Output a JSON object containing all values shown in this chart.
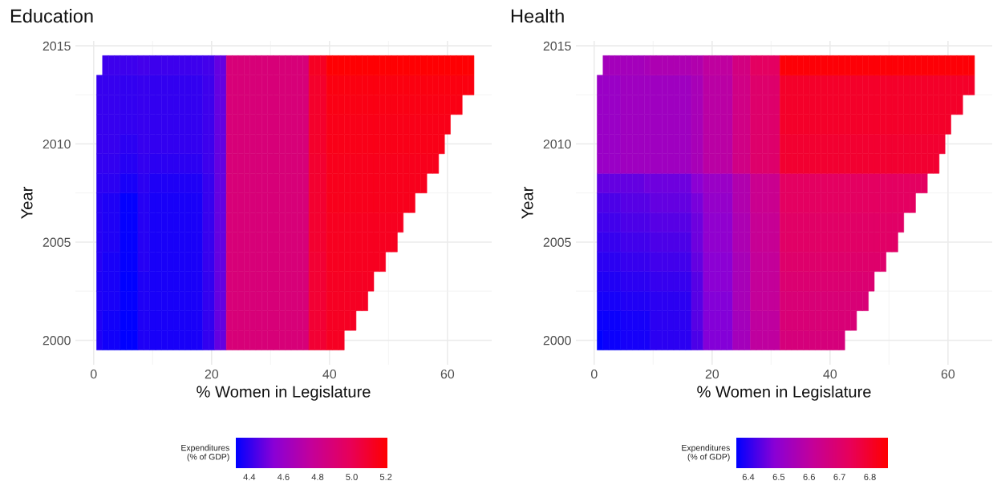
{
  "chart_data": [
    {
      "type": "heatmap",
      "title": "Education",
      "xlabel": "% Women in Legislature",
      "ylabel": "Year",
      "clabel": "Expenditures\n(% of GDP)",
      "categories": [
        "0",
        null,
        null,
        null,
        null,
        null,
        null,
        null,
        null,
        null,
        null,
        null,
        null,
        null,
        null,
        null,
        null,
        null,
        null,
        null,
        "20",
        null,
        null,
        null,
        null,
        null,
        null,
        null,
        null,
        null,
        null,
        null,
        null,
        null,
        null,
        null,
        null,
        null,
        null,
        null,
        "40",
        null,
        null,
        null,
        null,
        null,
        null,
        null,
        null,
        null,
        null,
        null,
        null,
        null,
        null,
        null,
        null,
        null,
        null,
        null,
        "60",
        null,
        null,
        null,
        null
      ],
      "y_categories": [
        "2015",
        null,
        null,
        null,
        null,
        "2010",
        null,
        null,
        null,
        null,
        "2005",
        null,
        null,
        null,
        null,
        "2000"
      ],
      "cells": [
        [
          null,
          null,
          null,
          null,
          null,
          null,
          null,
          null,
          null,
          null,
          null,
          null,
          null,
          null,
          null,
          null,
          null,
          null,
          null,
          null,
          null,
          null,
          null,
          null,
          null,
          null,
          null,
          null,
          null,
          null,
          null,
          null,
          null,
          null,
          null,
          null,
          null,
          null,
          null,
          null,
          null,
          null,
          null,
          null,
          null,
          null,
          null,
          null,
          null,
          null,
          null,
          null,
          null,
          null,
          null,
          null,
          null,
          null,
          null,
          null,
          null,
          null,
          null,
          null,
          null
        ],
        [
          null,
          null,
          4.42,
          4.42,
          4.42,
          4.42,
          4.42,
          4.42,
          4.43,
          4.43,
          4.42,
          4.42,
          4.42,
          4.42,
          4.42,
          4.42,
          4.42,
          4.42,
          4.42,
          4.43,
          4.43,
          4.48,
          4.48,
          4.88,
          4.88,
          4.88,
          4.88,
          4.88,
          4.88,
          4.88,
          4.88,
          4.88,
          4.88,
          4.88,
          4.88,
          4.88,
          4.88,
          5.12,
          5.12,
          5.12,
          5.2,
          5.2,
          5.2,
          5.2,
          5.2,
          5.2,
          5.2,
          5.2,
          5.2,
          5.2,
          5.2,
          5.2,
          5.2,
          5.2,
          5.2,
          5.2,
          5.2,
          5.2,
          5.2,
          5.2,
          5.2,
          5.2,
          5.2,
          5.2,
          5.2
        ],
        [
          null,
          4.41,
          4.41,
          4.41,
          4.41,
          4.4,
          4.4,
          4.4,
          4.41,
          4.41,
          4.4,
          4.4,
          4.4,
          4.4,
          4.4,
          4.4,
          4.4,
          4.4,
          4.4,
          4.42,
          4.42,
          4.48,
          4.48,
          4.88,
          4.88,
          4.88,
          4.88,
          4.88,
          4.88,
          4.88,
          4.88,
          4.88,
          4.88,
          4.88,
          4.88,
          4.88,
          4.88,
          5.1,
          5.1,
          5.1,
          5.17,
          5.17,
          5.17,
          5.17,
          5.17,
          5.17,
          5.17,
          5.17,
          5.17,
          5.17,
          5.17,
          5.17,
          5.17,
          5.17,
          5.17,
          5.17,
          5.17,
          5.17,
          5.17,
          5.17,
          5.17,
          5.17,
          5.17,
          5.17,
          5.17
        ],
        [
          null,
          4.41,
          4.41,
          4.41,
          4.41,
          4.4,
          4.4,
          4.4,
          4.41,
          4.41,
          4.4,
          4.4,
          4.4,
          4.4,
          4.4,
          4.4,
          4.4,
          4.4,
          4.4,
          4.42,
          4.42,
          4.48,
          4.48,
          4.88,
          4.88,
          4.88,
          4.88,
          4.88,
          4.88,
          4.88,
          4.88,
          4.88,
          4.88,
          4.88,
          4.88,
          4.88,
          4.88,
          5.1,
          5.1,
          5.1,
          5.16,
          5.16,
          5.16,
          5.16,
          5.16,
          5.16,
          5.16,
          5.16,
          5.16,
          5.16,
          5.16,
          5.16,
          5.16,
          5.16,
          5.16,
          5.16,
          5.16,
          5.16,
          5.16,
          5.16,
          5.16,
          5.16,
          5.16,
          null,
          null
        ],
        [
          null,
          4.41,
          4.41,
          4.41,
          4.41,
          4.4,
          4.4,
          4.4,
          4.41,
          4.41,
          4.4,
          4.4,
          4.4,
          4.4,
          4.4,
          4.4,
          4.4,
          4.4,
          4.4,
          4.42,
          4.42,
          4.48,
          4.48,
          4.88,
          4.88,
          4.88,
          4.88,
          4.88,
          4.88,
          4.88,
          4.88,
          4.88,
          4.88,
          4.88,
          4.88,
          4.88,
          4.88,
          5.1,
          5.1,
          5.1,
          5.15,
          5.15,
          5.15,
          5.15,
          5.15,
          5.15,
          5.15,
          5.15,
          5.15,
          5.15,
          5.15,
          5.15,
          5.15,
          5.15,
          5.15,
          5.15,
          5.15,
          5.15,
          5.15,
          5.15,
          5.15,
          null,
          null,
          null,
          null
        ],
        [
          null,
          4.41,
          4.41,
          4.41,
          4.41,
          4.39,
          4.39,
          4.39,
          4.41,
          4.41,
          4.4,
          4.4,
          4.4,
          4.4,
          4.4,
          4.4,
          4.4,
          4.4,
          4.4,
          4.42,
          4.42,
          4.48,
          4.48,
          4.88,
          4.88,
          4.88,
          4.88,
          4.88,
          4.88,
          4.88,
          4.88,
          4.88,
          4.88,
          4.88,
          4.88,
          4.88,
          4.88,
          5.1,
          5.1,
          5.1,
          5.15,
          5.15,
          5.15,
          5.15,
          5.15,
          5.15,
          5.15,
          5.15,
          5.15,
          5.15,
          5.15,
          5.15,
          5.15,
          5.15,
          5.15,
          5.15,
          5.15,
          5.15,
          5.15,
          5.15,
          null,
          null,
          null,
          null,
          null
        ],
        [
          null,
          4.4,
          4.4,
          4.4,
          4.4,
          4.38,
          4.38,
          4.38,
          4.4,
          4.4,
          4.39,
          4.39,
          4.39,
          4.39,
          4.39,
          4.39,
          4.39,
          4.39,
          4.39,
          4.42,
          4.42,
          4.48,
          4.48,
          4.88,
          4.88,
          4.88,
          4.88,
          4.88,
          4.88,
          4.88,
          4.88,
          4.88,
          4.88,
          4.88,
          4.88,
          4.88,
          4.88,
          5.09,
          5.09,
          5.09,
          5.14,
          5.14,
          5.14,
          5.14,
          5.14,
          5.14,
          5.14,
          5.14,
          5.14,
          5.14,
          5.14,
          5.14,
          5.14,
          5.14,
          5.14,
          5.14,
          5.14,
          5.14,
          5.14,
          null,
          null,
          null,
          null,
          null,
          null
        ],
        [
          null,
          4.39,
          4.39,
          4.39,
          4.39,
          4.36,
          4.36,
          4.36,
          4.39,
          4.39,
          4.37,
          4.37,
          4.37,
          4.37,
          4.37,
          4.37,
          4.37,
          4.37,
          4.37,
          4.41,
          4.41,
          4.48,
          4.48,
          4.88,
          4.88,
          4.88,
          4.88,
          4.88,
          4.88,
          4.88,
          4.88,
          4.88,
          4.88,
          4.88,
          4.88,
          4.88,
          4.88,
          5.09,
          5.09,
          5.09,
          5.14,
          5.14,
          5.14,
          5.14,
          5.14,
          5.14,
          5.14,
          5.14,
          5.14,
          5.14,
          5.14,
          5.14,
          5.14,
          5.14,
          5.14,
          5.14,
          5.14,
          null,
          null,
          null,
          null,
          null,
          null,
          null,
          null
        ],
        [
          null,
          4.38,
          4.37,
          4.37,
          4.37,
          4.33,
          4.33,
          4.33,
          4.38,
          4.38,
          4.36,
          4.36,
          4.36,
          4.36,
          4.36,
          4.36,
          4.36,
          4.36,
          4.36,
          4.41,
          4.41,
          4.48,
          4.48,
          4.88,
          4.88,
          4.88,
          4.88,
          4.88,
          4.88,
          4.88,
          4.88,
          4.88,
          4.88,
          4.88,
          4.88,
          4.88,
          4.88,
          5.09,
          5.09,
          5.09,
          5.14,
          5.14,
          5.14,
          5.14,
          5.14,
          5.14,
          5.14,
          5.14,
          5.14,
          5.14,
          5.14,
          5.14,
          5.14,
          5.14,
          5.14,
          null,
          null,
          null,
          null,
          null,
          null,
          null,
          null,
          null,
          null
        ],
        [
          null,
          4.38,
          4.37,
          4.37,
          4.37,
          4.33,
          4.33,
          4.33,
          4.38,
          4.38,
          4.36,
          4.36,
          4.36,
          4.36,
          4.36,
          4.36,
          4.36,
          4.36,
          4.36,
          4.41,
          4.41,
          4.48,
          4.48,
          4.88,
          4.88,
          4.88,
          4.88,
          4.88,
          4.88,
          4.88,
          4.88,
          4.88,
          4.88,
          4.88,
          4.88,
          4.88,
          4.88,
          5.09,
          5.09,
          5.09,
          5.13,
          5.13,
          5.13,
          5.13,
          5.13,
          5.13,
          5.13,
          5.13,
          5.13,
          5.13,
          5.13,
          5.13,
          5.13,
          null,
          null,
          null,
          null,
          null,
          null,
          null,
          null,
          null,
          null,
          null,
          null
        ],
        [
          null,
          4.38,
          4.37,
          4.37,
          4.37,
          4.33,
          4.33,
          4.33,
          4.38,
          4.38,
          4.36,
          4.36,
          4.36,
          4.36,
          4.36,
          4.36,
          4.36,
          4.36,
          4.36,
          4.41,
          4.41,
          4.48,
          4.48,
          4.88,
          4.88,
          4.88,
          4.88,
          4.88,
          4.88,
          4.88,
          4.88,
          4.88,
          4.88,
          4.88,
          4.88,
          4.88,
          4.88,
          5.09,
          5.09,
          5.09,
          5.13,
          5.13,
          5.13,
          5.13,
          5.13,
          5.13,
          5.13,
          5.13,
          5.13,
          5.13,
          5.13,
          5.13,
          null,
          null,
          null,
          null,
          null,
          null,
          null,
          null,
          null,
          null,
          null,
          null,
          null
        ],
        [
          null,
          4.38,
          4.36,
          4.36,
          4.36,
          4.33,
          4.33,
          4.33,
          4.38,
          4.38,
          4.36,
          4.36,
          4.36,
          4.36,
          4.36,
          4.36,
          4.36,
          4.36,
          4.36,
          4.41,
          4.41,
          4.48,
          4.48,
          4.88,
          4.88,
          4.88,
          4.88,
          4.88,
          4.88,
          4.88,
          4.88,
          4.88,
          4.88,
          4.88,
          4.88,
          4.88,
          4.88,
          5.08,
          5.08,
          5.08,
          5.13,
          5.13,
          5.13,
          5.13,
          5.13,
          5.13,
          5.13,
          5.13,
          5.13,
          5.13,
          null,
          null,
          null,
          null,
          null,
          null,
          null,
          null,
          null,
          null,
          null,
          null,
          null,
          null,
          null
        ],
        [
          null,
          4.37,
          4.36,
          4.36,
          4.36,
          4.32,
          4.32,
          4.32,
          4.37,
          4.37,
          4.36,
          4.36,
          4.36,
          4.36,
          4.36,
          4.36,
          4.36,
          4.36,
          4.36,
          4.4,
          4.4,
          4.48,
          4.48,
          4.88,
          4.88,
          4.88,
          4.88,
          4.88,
          4.88,
          4.88,
          4.88,
          4.88,
          4.88,
          4.88,
          4.88,
          4.88,
          4.88,
          5.08,
          5.08,
          5.08,
          5.12,
          5.12,
          5.12,
          5.12,
          5.12,
          5.12,
          5.12,
          5.12,
          null,
          null,
          null,
          null,
          null,
          null,
          null,
          null,
          null,
          null,
          null,
          null,
          null,
          null,
          null,
          null,
          null
        ],
        [
          null,
          4.37,
          4.36,
          4.36,
          4.36,
          4.33,
          4.33,
          4.33,
          4.37,
          4.37,
          4.36,
          4.36,
          4.36,
          4.36,
          4.36,
          4.36,
          4.36,
          4.36,
          4.36,
          4.4,
          4.4,
          4.48,
          4.48,
          4.88,
          4.88,
          4.88,
          4.88,
          4.88,
          4.88,
          4.88,
          4.88,
          4.88,
          4.88,
          4.88,
          4.88,
          4.88,
          4.88,
          5.08,
          5.08,
          5.08,
          5.12,
          5.12,
          5.12,
          5.12,
          5.12,
          5.12,
          5.12,
          null,
          null,
          null,
          null,
          null,
          null,
          null,
          null,
          null,
          null,
          null,
          null,
          null,
          null,
          null,
          null,
          null,
          null
        ],
        [
          null,
          4.37,
          4.35,
          4.35,
          4.35,
          4.32,
          4.32,
          4.32,
          4.37,
          4.37,
          4.36,
          4.36,
          4.36,
          4.36,
          4.36,
          4.36,
          4.36,
          4.36,
          4.36,
          4.4,
          4.4,
          4.48,
          4.48,
          4.88,
          4.88,
          4.88,
          4.88,
          4.88,
          4.88,
          4.88,
          4.88,
          4.88,
          4.88,
          4.88,
          4.88,
          4.88,
          4.88,
          5.08,
          5.08,
          5.08,
          5.12,
          5.12,
          5.12,
          5.12,
          5.12,
          null,
          null,
          null,
          null,
          null,
          null,
          null,
          null,
          null,
          null,
          null,
          null,
          null,
          null,
          null,
          null,
          null,
          null,
          null,
          null
        ],
        [
          null,
          4.37,
          4.35,
          4.35,
          4.35,
          4.32,
          4.32,
          4.32,
          4.37,
          4.37,
          4.36,
          4.36,
          4.36,
          4.36,
          4.36,
          4.36,
          4.36,
          4.36,
          4.36,
          4.4,
          4.4,
          4.48,
          4.48,
          4.88,
          4.88,
          4.88,
          4.88,
          4.88,
          4.88,
          4.88,
          4.88,
          4.88,
          4.88,
          4.88,
          4.88,
          4.88,
          4.88,
          5.08,
          5.08,
          5.08,
          5.12,
          5.12,
          5.12,
          null,
          null,
          null,
          null,
          null,
          null,
          null,
          null,
          null,
          null,
          null,
          null,
          null,
          null,
          null,
          null,
          null,
          null,
          null,
          null,
          null,
          null
        ]
      ],
      "clim": [
        4.32,
        5.21
      ],
      "cticks": [
        4.4,
        4.6,
        4.8,
        {
          "value": 5.0,
          "label": "5.0"
        },
        5.2
      ],
      "grid": true
    },
    {
      "type": "heatmap",
      "title": "Health",
      "xlabel": "% Women in Legislature",
      "ylabel": "Year",
      "clabel": "Expenditures\n(% of GDP)",
      "categories": [
        "0",
        null,
        null,
        null,
        null,
        null,
        null,
        null,
        null,
        null,
        null,
        null,
        null,
        null,
        null,
        null,
        null,
        null,
        null,
        null,
        "20",
        null,
        null,
        null,
        null,
        null,
        null,
        null,
        null,
        null,
        null,
        null,
        null,
        null,
        null,
        null,
        null,
        null,
        null,
        null,
        "40",
        null,
        null,
        null,
        null,
        null,
        null,
        null,
        null,
        null,
        null,
        null,
        null,
        null,
        null,
        null,
        null,
        null,
        null,
        null,
        "60",
        null,
        null,
        null,
        null
      ],
      "y_categories": [
        "2015",
        null,
        null,
        null,
        null,
        "2010",
        null,
        null,
        null,
        null,
        "2005",
        null,
        null,
        null,
        null,
        "2000"
      ],
      "cells": [
        [
          null,
          null,
          null,
          null,
          null,
          null,
          null,
          null,
          null,
          null,
          null,
          null,
          null,
          null,
          null,
          null,
          null,
          null,
          null,
          null,
          null,
          null,
          null,
          null,
          null,
          null,
          null,
          null,
          null,
          null,
          null,
          null,
          null,
          null,
          null,
          null,
          null,
          null,
          null,
          null,
          null,
          null,
          null,
          null,
          null,
          null,
          null,
          null,
          null,
          null,
          null,
          null,
          null,
          null,
          null,
          null,
          null,
          null,
          null,
          null,
          null,
          null,
          null,
          null,
          null
        ],
        [
          null,
          null,
          6.54,
          6.54,
          6.54,
          6.54,
          6.54,
          6.54,
          6.54,
          6.55,
          6.56,
          6.56,
          6.56,
          6.56,
          6.56,
          6.56,
          6.56,
          6.57,
          6.57,
          6.6,
          6.6,
          6.6,
          6.6,
          6.6,
          6.66,
          6.66,
          6.66,
          6.72,
          6.72,
          6.72,
          6.72,
          6.72,
          6.85,
          6.85,
          6.85,
          6.85,
          6.85,
          6.85,
          6.85,
          6.85,
          6.85,
          6.85,
          6.85,
          6.85,
          6.85,
          6.85,
          6.85,
          6.85,
          6.85,
          6.85,
          6.85,
          6.85,
          6.85,
          6.85,
          6.85,
          6.85,
          6.85,
          6.85,
          6.85,
          6.85,
          6.85,
          6.85,
          6.85,
          6.85,
          6.85
        ],
        [
          null,
          6.52,
          6.52,
          6.52,
          6.52,
          6.53,
          6.53,
          6.53,
          6.53,
          6.53,
          6.53,
          6.53,
          6.53,
          6.53,
          6.53,
          6.53,
          6.53,
          6.55,
          6.55,
          6.59,
          6.59,
          6.59,
          6.59,
          6.59,
          6.65,
          6.65,
          6.65,
          6.7,
          6.7,
          6.7,
          6.7,
          6.7,
          6.8,
          6.8,
          6.8,
          6.8,
          6.8,
          6.8,
          6.8,
          6.8,
          6.8,
          6.8,
          6.8,
          6.8,
          6.8,
          6.8,
          6.8,
          6.8,
          6.8,
          6.8,
          6.8,
          6.8,
          6.8,
          6.8,
          6.8,
          6.8,
          6.8,
          6.8,
          6.8,
          6.8,
          6.8,
          6.8,
          6.8,
          6.8,
          6.8
        ],
        [
          null,
          6.52,
          6.52,
          6.52,
          6.52,
          6.53,
          6.53,
          6.53,
          6.53,
          6.53,
          6.53,
          6.53,
          6.53,
          6.53,
          6.53,
          6.53,
          6.53,
          6.55,
          6.55,
          6.59,
          6.59,
          6.59,
          6.59,
          6.59,
          6.65,
          6.65,
          6.65,
          6.7,
          6.7,
          6.7,
          6.7,
          6.7,
          6.8,
          6.8,
          6.8,
          6.8,
          6.8,
          6.8,
          6.8,
          6.8,
          6.8,
          6.8,
          6.8,
          6.8,
          6.8,
          6.8,
          6.8,
          6.8,
          6.8,
          6.8,
          6.8,
          6.8,
          6.8,
          6.8,
          6.8,
          6.8,
          6.8,
          6.8,
          6.8,
          6.8,
          6.8,
          6.8,
          6.8,
          null,
          null
        ],
        [
          null,
          6.52,
          6.52,
          6.52,
          6.52,
          6.53,
          6.53,
          6.53,
          6.53,
          6.53,
          6.53,
          6.53,
          6.53,
          6.53,
          6.53,
          6.53,
          6.53,
          6.55,
          6.55,
          6.59,
          6.59,
          6.59,
          6.59,
          6.59,
          6.65,
          6.65,
          6.65,
          6.7,
          6.7,
          6.7,
          6.7,
          6.7,
          6.8,
          6.8,
          6.8,
          6.8,
          6.8,
          6.8,
          6.8,
          6.8,
          6.8,
          6.8,
          6.8,
          6.8,
          6.8,
          6.8,
          6.8,
          6.8,
          6.8,
          6.8,
          6.8,
          6.8,
          6.8,
          6.8,
          6.8,
          6.8,
          6.8,
          6.8,
          6.8,
          6.8,
          6.8,
          null,
          null,
          null,
          null
        ],
        [
          null,
          6.52,
          6.52,
          6.52,
          6.52,
          6.53,
          6.53,
          6.53,
          6.53,
          6.53,
          6.53,
          6.53,
          6.53,
          6.53,
          6.53,
          6.53,
          6.53,
          6.55,
          6.55,
          6.59,
          6.59,
          6.59,
          6.59,
          6.59,
          6.65,
          6.65,
          6.65,
          6.7,
          6.7,
          6.7,
          6.7,
          6.7,
          6.79,
          6.79,
          6.79,
          6.79,
          6.79,
          6.79,
          6.79,
          6.79,
          6.79,
          6.79,
          6.79,
          6.79,
          6.79,
          6.79,
          6.79,
          6.79,
          6.79,
          6.79,
          6.79,
          6.79,
          6.79,
          6.79,
          6.79,
          6.79,
          6.79,
          6.79,
          6.79,
          6.79,
          null,
          null,
          null,
          null,
          null
        ],
        [
          null,
          6.52,
          6.52,
          6.52,
          6.52,
          6.53,
          6.53,
          6.53,
          6.53,
          6.53,
          6.53,
          6.53,
          6.53,
          6.53,
          6.53,
          6.53,
          6.53,
          6.55,
          6.55,
          6.59,
          6.59,
          6.59,
          6.59,
          6.59,
          6.65,
          6.65,
          6.65,
          6.7,
          6.7,
          6.7,
          6.7,
          6.7,
          6.79,
          6.79,
          6.79,
          6.79,
          6.79,
          6.79,
          6.79,
          6.79,
          6.79,
          6.79,
          6.79,
          6.79,
          6.79,
          6.79,
          6.79,
          6.79,
          6.79,
          6.79,
          6.79,
          6.79,
          6.79,
          6.79,
          6.79,
          6.79,
          6.79,
          6.79,
          6.79,
          null,
          null,
          null,
          null,
          null,
          null
        ],
        [
          null,
          6.45,
          6.45,
          6.45,
          6.45,
          6.45,
          6.45,
          6.45,
          6.45,
          6.46,
          6.46,
          6.46,
          6.46,
          6.46,
          6.46,
          6.46,
          6.46,
          6.49,
          6.49,
          6.52,
          6.52,
          6.52,
          6.52,
          6.52,
          6.57,
          6.57,
          6.57,
          6.63,
          6.63,
          6.63,
          6.63,
          6.63,
          6.72,
          6.72,
          6.72,
          6.72,
          6.72,
          6.72,
          6.72,
          6.72,
          6.72,
          6.72,
          6.72,
          6.72,
          6.72,
          6.72,
          6.72,
          6.72,
          6.72,
          6.72,
          6.72,
          6.72,
          6.72,
          6.72,
          6.72,
          6.72,
          6.72,
          null,
          null,
          null,
          null,
          null,
          null,
          null,
          null
        ],
        [
          null,
          6.43,
          6.43,
          6.43,
          6.43,
          6.44,
          6.44,
          6.44,
          6.44,
          6.44,
          6.45,
          6.45,
          6.45,
          6.45,
          6.45,
          6.45,
          6.45,
          6.47,
          6.47,
          6.51,
          6.51,
          6.51,
          6.51,
          6.51,
          6.57,
          6.57,
          6.57,
          6.63,
          6.63,
          6.63,
          6.63,
          6.63,
          6.72,
          6.72,
          6.72,
          6.72,
          6.72,
          6.72,
          6.72,
          6.72,
          6.72,
          6.72,
          6.72,
          6.72,
          6.72,
          6.72,
          6.72,
          6.72,
          6.72,
          6.72,
          6.72,
          6.72,
          6.72,
          6.72,
          6.72,
          null,
          null,
          null,
          null,
          null,
          null,
          null,
          null,
          null,
          null
        ],
        [
          null,
          6.42,
          6.42,
          6.42,
          6.42,
          6.43,
          6.43,
          6.43,
          6.43,
          6.43,
          6.44,
          6.44,
          6.44,
          6.44,
          6.44,
          6.44,
          6.44,
          6.46,
          6.46,
          6.5,
          6.5,
          6.5,
          6.5,
          6.5,
          6.56,
          6.56,
          6.56,
          6.62,
          6.62,
          6.62,
          6.62,
          6.62,
          6.71,
          6.71,
          6.71,
          6.71,
          6.71,
          6.71,
          6.71,
          6.71,
          6.71,
          6.71,
          6.71,
          6.71,
          6.71,
          6.71,
          6.71,
          6.71,
          6.71,
          6.71,
          6.71,
          6.71,
          6.71,
          null,
          null,
          null,
          null,
          null,
          null,
          null,
          null,
          null,
          null,
          null,
          null
        ],
        [
          null,
          6.41,
          6.41,
          6.41,
          6.41,
          6.42,
          6.42,
          6.42,
          6.42,
          6.42,
          6.43,
          6.43,
          6.43,
          6.43,
          6.43,
          6.43,
          6.43,
          6.46,
          6.46,
          6.5,
          6.5,
          6.5,
          6.5,
          6.5,
          6.56,
          6.56,
          6.56,
          6.62,
          6.62,
          6.62,
          6.62,
          6.62,
          6.71,
          6.71,
          6.71,
          6.71,
          6.71,
          6.71,
          6.71,
          6.71,
          6.71,
          6.71,
          6.71,
          6.71,
          6.71,
          6.71,
          6.71,
          6.71,
          6.71,
          6.71,
          6.71,
          6.71,
          null,
          null,
          null,
          null,
          null,
          null,
          null,
          null,
          null,
          null,
          null,
          null,
          null
        ],
        [
          null,
          6.4,
          6.4,
          6.4,
          6.4,
          6.41,
          6.41,
          6.41,
          6.41,
          6.41,
          6.42,
          6.42,
          6.42,
          6.42,
          6.42,
          6.42,
          6.42,
          6.45,
          6.45,
          6.49,
          6.49,
          6.49,
          6.49,
          6.49,
          6.55,
          6.55,
          6.55,
          6.61,
          6.61,
          6.61,
          6.61,
          6.61,
          6.7,
          6.7,
          6.7,
          6.7,
          6.7,
          6.7,
          6.7,
          6.7,
          6.7,
          6.7,
          6.7,
          6.7,
          6.7,
          6.7,
          6.7,
          6.7,
          6.7,
          6.7,
          null,
          null,
          null,
          null,
          null,
          null,
          null,
          null,
          null,
          null,
          null,
          null,
          null,
          null,
          null
        ],
        [
          null,
          6.39,
          6.39,
          6.39,
          6.39,
          6.4,
          6.4,
          6.4,
          6.4,
          6.4,
          6.41,
          6.41,
          6.41,
          6.41,
          6.41,
          6.41,
          6.41,
          6.44,
          6.44,
          6.49,
          6.49,
          6.49,
          6.49,
          6.49,
          6.55,
          6.55,
          6.55,
          6.61,
          6.61,
          6.61,
          6.61,
          6.61,
          6.69,
          6.69,
          6.69,
          6.69,
          6.69,
          6.69,
          6.69,
          6.69,
          6.69,
          6.69,
          6.69,
          6.69,
          6.69,
          6.69,
          6.69,
          6.69,
          null,
          null,
          null,
          null,
          null,
          null,
          null,
          null,
          null,
          null,
          null,
          null,
          null,
          null,
          null,
          null,
          null
        ],
        [
          null,
          6.38,
          6.38,
          6.38,
          6.38,
          6.39,
          6.39,
          6.39,
          6.39,
          6.39,
          6.4,
          6.4,
          6.4,
          6.4,
          6.4,
          6.4,
          6.4,
          6.44,
          6.44,
          6.48,
          6.48,
          6.48,
          6.48,
          6.48,
          6.55,
          6.55,
          6.55,
          6.61,
          6.61,
          6.61,
          6.61,
          6.61,
          6.68,
          6.68,
          6.68,
          6.68,
          6.68,
          6.68,
          6.68,
          6.68,
          6.68,
          6.68,
          6.68,
          6.68,
          6.68,
          6.68,
          6.68,
          null,
          null,
          null,
          null,
          null,
          null,
          null,
          null,
          null,
          null,
          null,
          null,
          null,
          null,
          null,
          null,
          null,
          null
        ],
        [
          null,
          6.37,
          6.37,
          6.37,
          6.37,
          6.38,
          6.38,
          6.38,
          6.38,
          6.38,
          6.4,
          6.4,
          6.4,
          6.4,
          6.4,
          6.4,
          6.4,
          6.44,
          6.44,
          6.48,
          6.48,
          6.48,
          6.48,
          6.48,
          6.54,
          6.54,
          6.54,
          6.6,
          6.6,
          6.6,
          6.6,
          6.6,
          6.68,
          6.68,
          6.68,
          6.68,
          6.68,
          6.68,
          6.68,
          6.68,
          6.68,
          6.68,
          6.68,
          6.68,
          6.68,
          null,
          null,
          null,
          null,
          null,
          null,
          null,
          null,
          null,
          null,
          null,
          null,
          null,
          null,
          null,
          null,
          null,
          null,
          null,
          null
        ],
        [
          null,
          6.36,
          6.37,
          6.37,
          6.37,
          6.38,
          6.38,
          6.38,
          6.38,
          6.38,
          6.4,
          6.4,
          6.4,
          6.4,
          6.4,
          6.4,
          6.4,
          6.43,
          6.43,
          6.48,
          6.48,
          6.48,
          6.48,
          6.48,
          6.54,
          6.54,
          6.54,
          6.6,
          6.6,
          6.6,
          6.6,
          6.6,
          6.67,
          6.67,
          6.67,
          6.67,
          6.67,
          6.67,
          6.67,
          6.67,
          6.67,
          6.67,
          6.67,
          null,
          null,
          null,
          null,
          null,
          null,
          null,
          null,
          null,
          null,
          null,
          null,
          null,
          null,
          null,
          null,
          null,
          null,
          null,
          null,
          null,
          null
        ]
      ],
      "clim": [
        6.36,
        6.86
      ],
      "cticks": [
        6.4,
        6.5,
        6.6,
        6.7,
        6.8
      ],
      "grid": true
    }
  ]
}
